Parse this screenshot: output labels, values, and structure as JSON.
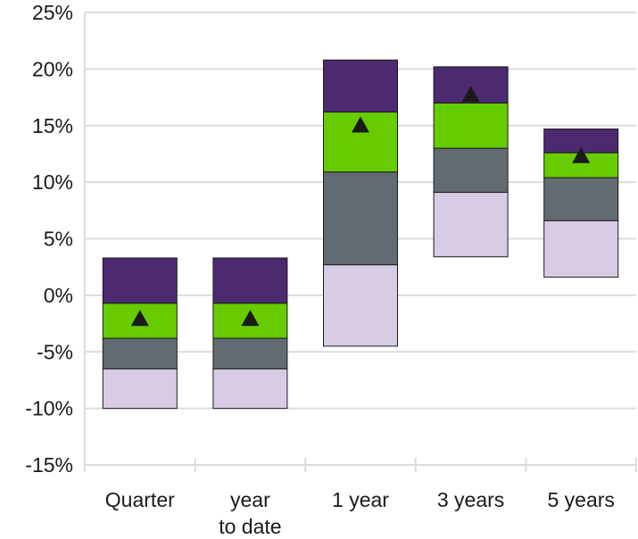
{
  "chart_data": {
    "type": "bar",
    "subtype": "floating-stacked-range",
    "title": "",
    "xlabel": "",
    "ylabel": "",
    "ylim": [
      -15,
      25
    ],
    "yticks": [
      25,
      20,
      15,
      10,
      5,
      0,
      -5,
      -10,
      -15
    ],
    "ytick_labels": [
      "25%",
      "20%",
      "15%",
      "10%",
      "5%",
      "0%",
      "-5%",
      "-10%",
      "-15%"
    ],
    "grid": true,
    "legend": "none",
    "categories": [
      {
        "lines": [
          "Quarter"
        ]
      },
      {
        "lines": [
          "year",
          "to date"
        ]
      },
      {
        "lines": [
          "1 year"
        ]
      },
      {
        "lines": [
          "3 years"
        ]
      },
      {
        "lines": [
          "5 years"
        ]
      }
    ],
    "band_colors": [
      "#d8cce4",
      "#636b72",
      "#66cc00",
      "#4b2a70"
    ],
    "marker_color": "#1a1a1a",
    "boundaries": [
      [
        -10.0,
        -6.5,
        -3.8,
        -0.7,
        3.3
      ],
      [
        -10.0,
        -6.5,
        -3.8,
        -0.7,
        3.3
      ],
      [
        -4.5,
        2.7,
        10.9,
        16.2,
        20.8
      ],
      [
        3.4,
        9.1,
        13.0,
        17.0,
        20.2
      ],
      [
        1.6,
        6.6,
        10.4,
        12.6,
        14.7
      ]
    ],
    "markers": [
      -2.0,
      -2.0,
      15.1,
      17.8,
      12.4
    ]
  }
}
